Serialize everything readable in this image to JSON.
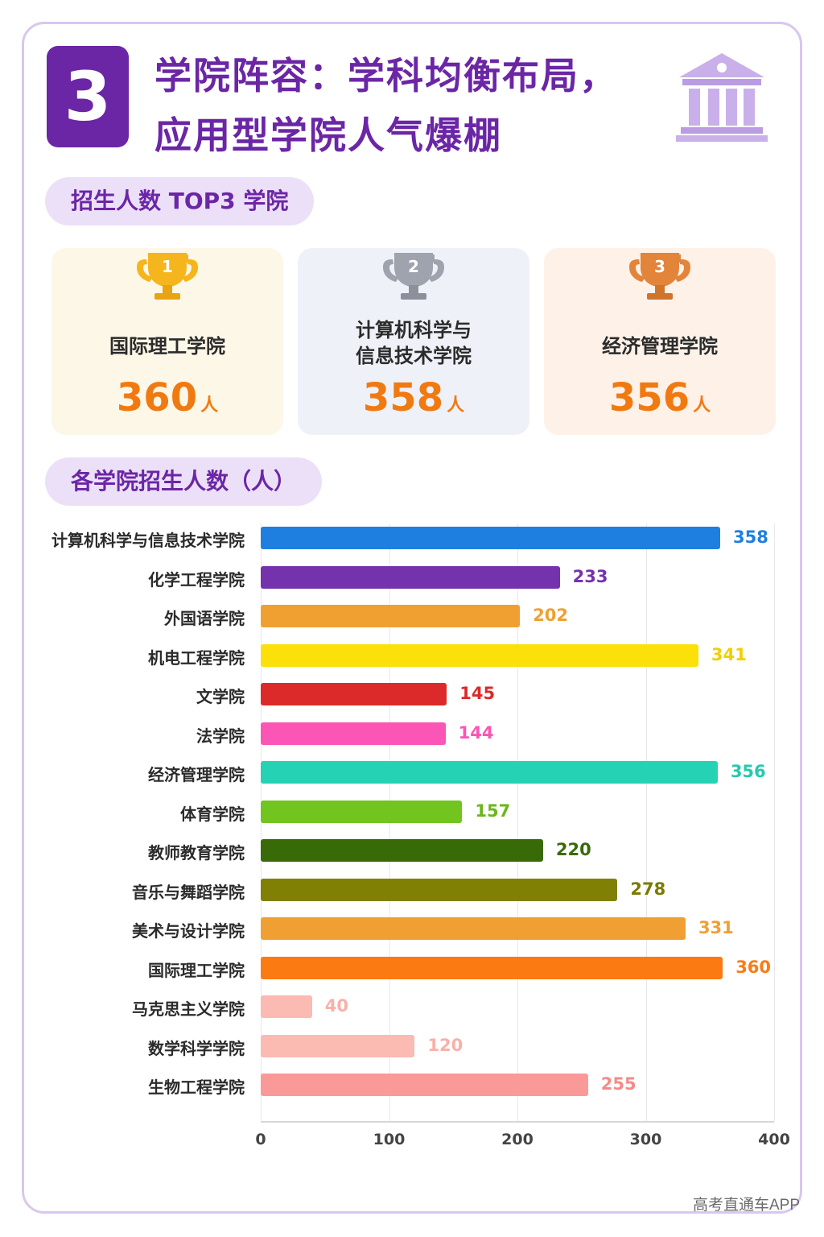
{
  "header": {
    "number": "3",
    "title_line1": "学院阵容：学科均衡布局，",
    "title_line2": "应用型学院人气爆棚",
    "icon": "building-columns-icon"
  },
  "top3": {
    "label": "招生人数 TOP3 学院",
    "items": [
      {
        "rank": "1",
        "name_line1": "国际理工学院",
        "name_line2": "",
        "count": "360",
        "unit": "人",
        "trophy_color": "#f5b51c"
      },
      {
        "rank": "2",
        "name_line1": "计算机科学与",
        "name_line2": "信息技术学院",
        "count": "358",
        "unit": "人",
        "trophy_color": "#9ea3ad"
      },
      {
        "rank": "3",
        "name_line1": "经济管理学院",
        "name_line2": "",
        "count": "356",
        "unit": "人",
        "trophy_color": "#e2843a"
      }
    ]
  },
  "chart_section_label": "各学院招生人数（人）",
  "chart_data": {
    "type": "bar",
    "orientation": "horizontal",
    "categories": [
      "计算机科学与信息技术学院",
      "化学工程学院",
      "外国语学院",
      "机电工程学院",
      "文学院",
      "法学院",
      "经济管理学院",
      "体育学院",
      "教师教育学院",
      "音乐与舞蹈学院",
      "美术与设计学院",
      "国际理工学院",
      "马克思主义学院",
      "数学科学学院",
      "生物工程学院"
    ],
    "values": [
      358,
      233,
      202,
      341,
      145,
      144,
      356,
      157,
      220,
      278,
      331,
      360,
      40,
      120,
      255
    ],
    "colors": [
      "#1f7fe0",
      "#7433ad",
      "#f0a030",
      "#fbe009",
      "#dc2a2a",
      "#fb55b5",
      "#26d2b4",
      "#72c41e",
      "#386b08",
      "#808005",
      "#f0a033",
      "#fb7b12",
      "#fbbab2",
      "#fbbab2",
      "#fa9a98"
    ],
    "label_colors": [
      "#1f7fe0",
      "#7433ad",
      "#f0a030",
      "#f0d000",
      "#dc2a2a",
      "#fb55b5",
      "#26c9ae",
      "#6ab71c",
      "#386b08",
      "#7a7a05",
      "#f0a033",
      "#fb7b12",
      "#f8b0a8",
      "#f8b0a8",
      "#f58a88"
    ],
    "xlim": [
      0,
      400
    ],
    "xticks": [
      "0",
      "100",
      "200",
      "300",
      "400"
    ],
    "grid": true
  },
  "footer": "高考直通车APP"
}
